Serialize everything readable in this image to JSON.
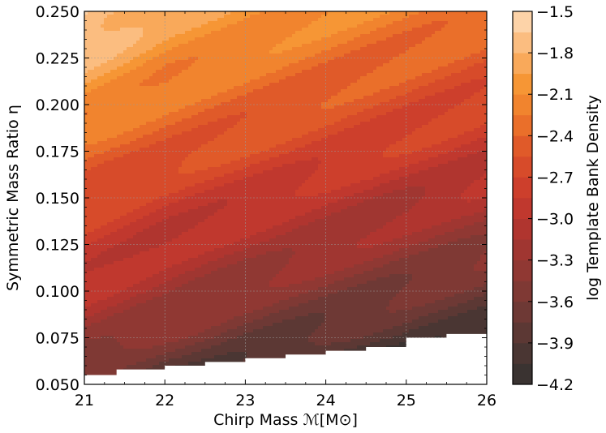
{
  "chart_data": {
    "type": "heatmap",
    "subtype": "filled-contour",
    "xlabel": "Chirp Mass ℳ[M⊙]",
    "ylabel": "Symmetric Mass Ratio η",
    "xlim": [
      21,
      26
    ],
    "ylim": [
      0.05,
      0.25
    ],
    "x_ticks": [
      21,
      22,
      23,
      24,
      25,
      26
    ],
    "x_tick_labels": [
      "21",
      "22",
      "23",
      "24",
      "25",
      "26"
    ],
    "y_ticks": [
      0.05,
      0.075,
      0.1,
      0.125,
      0.15,
      0.175,
      0.2,
      0.225,
      0.25
    ],
    "y_tick_labels": [
      "0.050",
      "0.075",
      "0.100",
      "0.125",
      "0.150",
      "0.175",
      "0.200",
      "0.225",
      "0.250"
    ],
    "grid": true,
    "colorbar": {
      "label": "log Template Bank Density",
      "min": -4.2,
      "max": -1.5,
      "levels": [
        -4.2,
        -4.05,
        -3.9,
        -3.75,
        -3.6,
        -3.45,
        -3.3,
        -3.15,
        -3.0,
        -2.85,
        -2.7,
        -2.55,
        -2.4,
        -2.25,
        -2.1,
        -1.95,
        -1.8,
        -1.65,
        -1.5
      ],
      "tick_values": [
        -4.2,
        -3.9,
        -3.6,
        -3.3,
        -3.0,
        -2.7,
        -2.4,
        -2.1,
        -1.8,
        -1.5
      ],
      "tick_labels": [
        "−4.2",
        "−3.9",
        "−3.6",
        "−3.3",
        "−3.0",
        "−2.7",
        "−2.4",
        "−2.1",
        "−1.8",
        "−1.5"
      ],
      "colors": [
        "#3a3331",
        "#4a3633",
        "#5c3834",
        "#6e3935",
        "#7f3934",
        "#903833",
        "#a03631",
        "#b0352f",
        "#c0382e",
        "#cd3f2c",
        "#d74b2a",
        "#e05a29",
        "#ea6f2a",
        "#f1842e",
        "#f69635",
        "#f9a95a",
        "#fbbd80",
        "#fdd3a8",
        "#fee8d2"
      ]
    },
    "boundary_eta_min_by_mchirp": [
      [
        21.0,
        0.055
      ],
      [
        21.4,
        0.058
      ],
      [
        22.0,
        0.06
      ],
      [
        22.5,
        0.062
      ],
      [
        23.0,
        0.064
      ],
      [
        23.5,
        0.066
      ],
      [
        24.0,
        0.068
      ],
      [
        24.5,
        0.07
      ],
      [
        25.0,
        0.075
      ],
      [
        25.5,
        0.077
      ],
      [
        26.0,
        0.08
      ]
    ],
    "approx_log_density_grid": {
      "mchirp": [
        21,
        22,
        23,
        24,
        25,
        26
      ],
      "eta": [
        0.06,
        0.075,
        0.1,
        0.125,
        0.15,
        0.175,
        0.2,
        0.225,
        0.25
      ],
      "values": [
        [
          -3.6,
          -3.8,
          -3.9,
          -4.1,
          -4.2,
          -4.2
        ],
        [
          -3.3,
          -3.5,
          -3.7,
          -3.8,
          -3.9,
          -4.0
        ],
        [
          -3.0,
          -3.2,
          -3.4,
          -3.5,
          -3.6,
          -3.7
        ],
        [
          -2.8,
          -3.0,
          -3.1,
          -3.2,
          -3.3,
          -3.4
        ],
        [
          -2.6,
          -2.8,
          -2.9,
          -3.0,
          -3.1,
          -3.1
        ],
        [
          -2.4,
          -2.5,
          -2.6,
          -2.7,
          -2.8,
          -2.9
        ],
        [
          -2.1,
          -2.3,
          -2.4,
          -2.5,
          -2.6,
          -2.7
        ],
        [
          -1.8,
          -2.1,
          -2.2,
          -2.3,
          -2.4,
          -2.5
        ],
        [
          -1.55,
          -1.9,
          -2.0,
          -2.1,
          -2.2,
          -2.3
        ]
      ]
    }
  }
}
